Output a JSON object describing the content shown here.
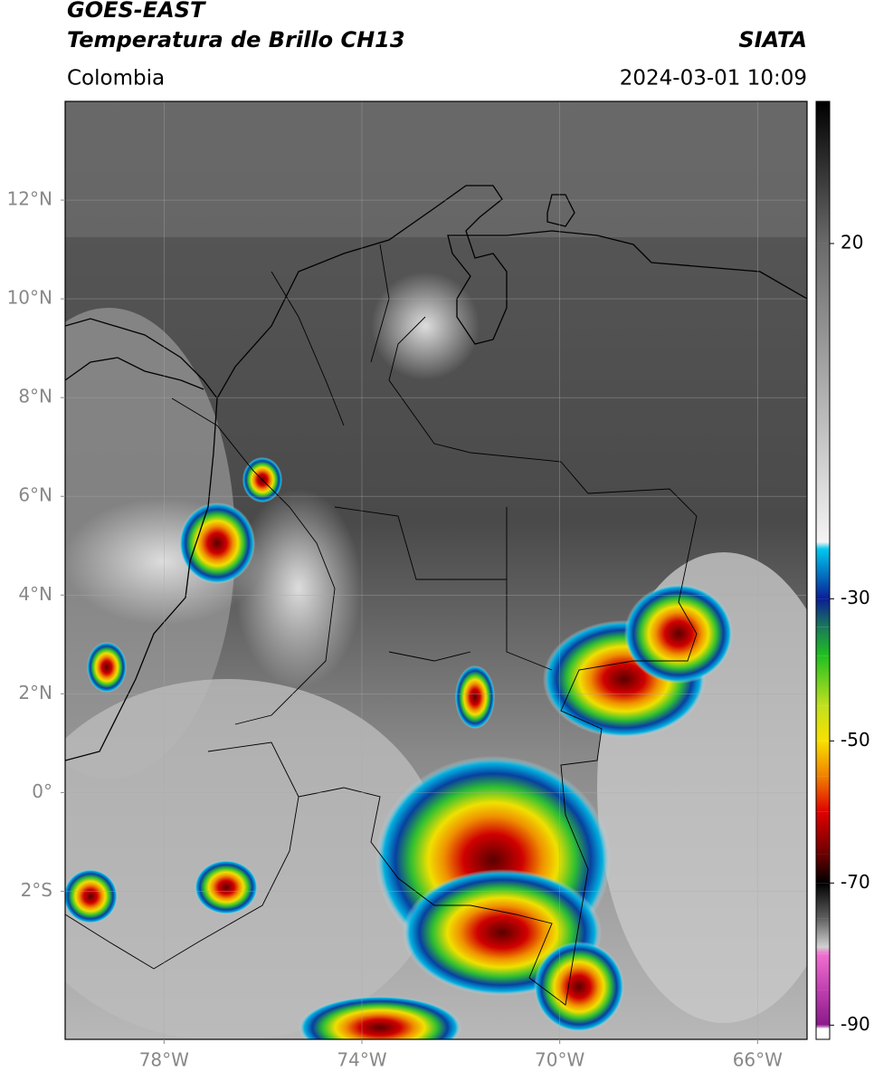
{
  "header": {
    "title": "GOES-EAST",
    "subtitle": "Temperatura de Brillo CH13",
    "source": "SIATA",
    "region": "Colombia",
    "datetime": "2024-03-01 10:09"
  },
  "map": {
    "xlim": [
      -80,
      -65
    ],
    "ylim": [
      -5,
      14
    ],
    "xticks": [
      {
        "value": -78,
        "label": "78°W"
      },
      {
        "value": -74,
        "label": "74°W"
      },
      {
        "value": -70,
        "label": "70°W"
      },
      {
        "value": -66,
        "label": "66°W"
      }
    ],
    "yticks": [
      {
        "value": 12,
        "label": "12°N"
      },
      {
        "value": 10,
        "label": "10°N"
      },
      {
        "value": 8,
        "label": "8°N"
      },
      {
        "value": 6,
        "label": "6°N"
      },
      {
        "value": 4,
        "label": "4°N"
      },
      {
        "value": 2,
        "label": "2°N"
      },
      {
        "value": 0,
        "label": "0°"
      },
      {
        "value": -2,
        "label": "2°S"
      }
    ],
    "grid": true
  },
  "colorbar": {
    "range": [
      -92,
      40
    ],
    "ticks": [
      20,
      -30,
      -50,
      -70,
      -90
    ],
    "stops": [
      {
        "value": 40,
        "color": "#000000"
      },
      {
        "value": 20,
        "color": "#6a6a6a"
      },
      {
        "value": -22,
        "color": "#f4f4f4"
      },
      {
        "value": -23,
        "color": "#00c8ee"
      },
      {
        "value": -30,
        "color": "#0a1e96"
      },
      {
        "value": -34,
        "color": "#1a7a5a"
      },
      {
        "value": -38,
        "color": "#20c020"
      },
      {
        "value": -45,
        "color": "#c0e020"
      },
      {
        "value": -50,
        "color": "#f8e000"
      },
      {
        "value": -55,
        "color": "#f08000"
      },
      {
        "value": -60,
        "color": "#e00000"
      },
      {
        "value": -66,
        "color": "#6a0000"
      },
      {
        "value": -70,
        "color": "#000000"
      },
      {
        "value": -75,
        "color": "#606060"
      },
      {
        "value": -79,
        "color": "#d0d0d0"
      },
      {
        "value": -80,
        "color": "#f070d0"
      },
      {
        "value": -85,
        "color": "#c040b0"
      },
      {
        "value": -90,
        "color": "#8a1a8a"
      },
      {
        "value": -90.5,
        "color": "#ffffff"
      },
      {
        "value": -92,
        "color": "#ffffff"
      }
    ]
  }
}
